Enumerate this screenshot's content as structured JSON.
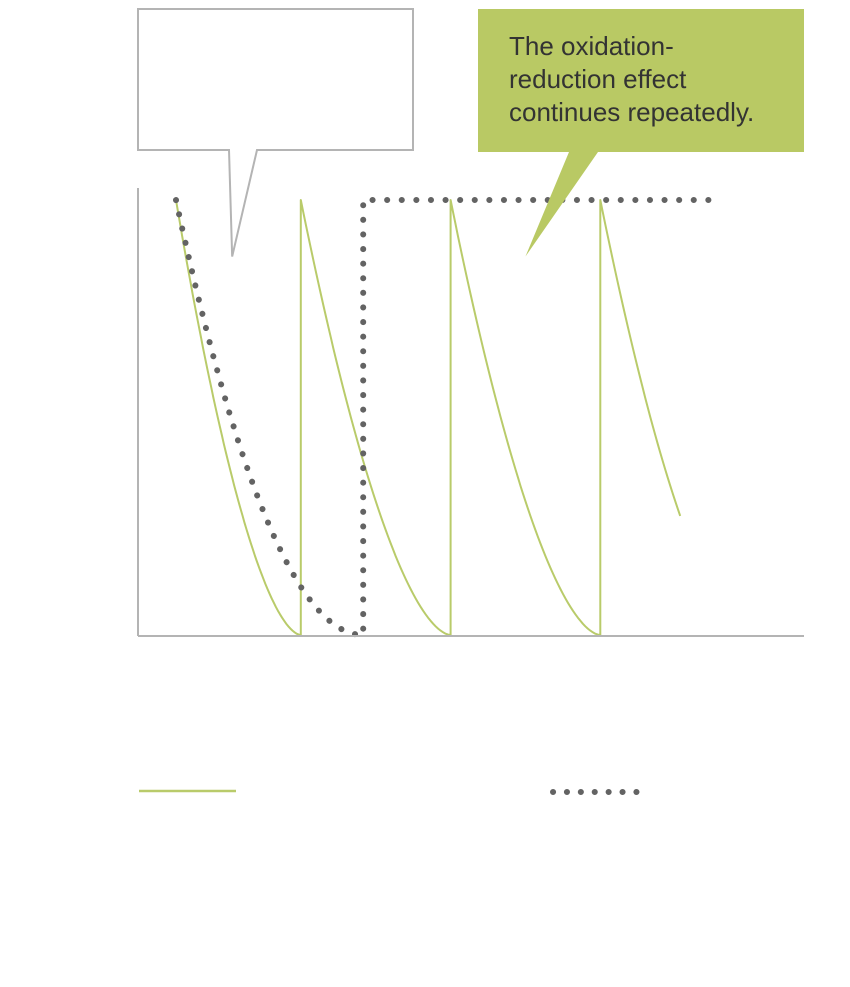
{
  "chart_data": {
    "type": "line",
    "title": "",
    "xlabel": "",
    "ylabel": "",
    "grid": false,
    "legend": "bottom",
    "xlim": [
      0,
      10
    ],
    "ylim": [
      0,
      1
    ],
    "series": [
      {
        "name": "",
        "color": "#b9cb6a",
        "style": "solid",
        "curve": "sawtooth-decay",
        "x": [
          0,
          2,
          2,
          4.4,
          4.4,
          6.8,
          6.8,
          8.1
        ],
        "y": [
          1,
          0,
          1,
          0,
          1,
          0,
          1,
          0.31
        ]
      },
      {
        "name": "",
        "color": "#636363",
        "style": "dotted",
        "curve": "single-decay-then-hold",
        "x": [
          0,
          3,
          3,
          8.7
        ],
        "y": [
          1,
          0,
          1,
          1
        ]
      }
    ],
    "annotations": [
      {
        "text": "",
        "style": "outlined",
        "pointer_x": 0.9,
        "pointer_y": 0.87
      },
      {
        "text": "The oxidation-reduction effect continues repeatedly.",
        "lines": [
          "The oxidation-",
          "reduction effect",
          "continues repeatedly."
        ],
        "style": "filled",
        "color": "#b9c964",
        "pointer_x": 5.6,
        "pointer_y": 0.87
      }
    ]
  }
}
